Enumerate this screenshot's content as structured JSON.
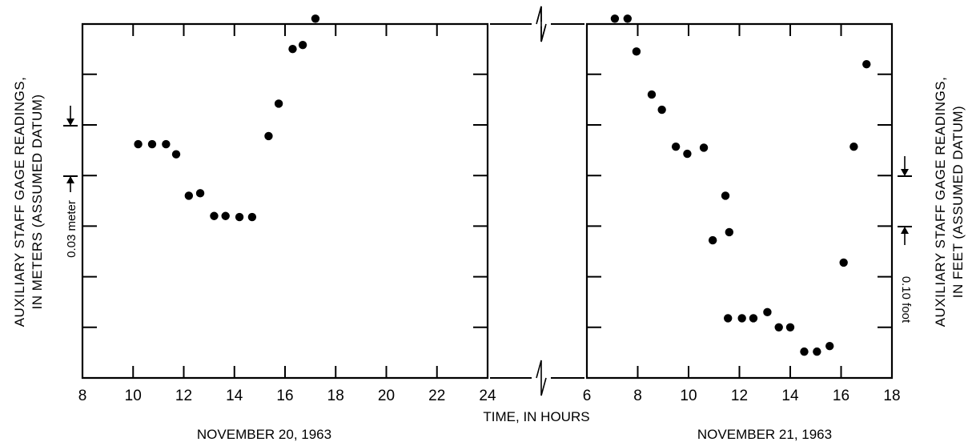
{
  "chart_data": [
    {
      "type": "scatter",
      "panel": "left",
      "date_label": "NOVEMBER 20, 1963",
      "xlim": [
        8,
        24
      ],
      "xticks": [
        8,
        10,
        12,
        14,
        16,
        18,
        20,
        22,
        24
      ],
      "xtick_labels": [
        "8",
        "10",
        "12",
        "14",
        "16",
        "18",
        "20",
        "22",
        "24"
      ],
      "ylabel_lines": [
        "AUXILIARY STAFF GAGE READINGS,",
        "IN METERS (ASSUMED DATUM)"
      ],
      "scale_bar_label": "0.03 meter",
      "points": [
        {
          "x": 10.2,
          "y": 5.62
        },
        {
          "x": 10.75,
          "y": 5.62
        },
        {
          "x": 11.3,
          "y": 5.62
        },
        {
          "x": 11.7,
          "y": 5.42
        },
        {
          "x": 12.2,
          "y": 4.6
        },
        {
          "x": 12.65,
          "y": 4.65
        },
        {
          "x": 13.2,
          "y": 4.2
        },
        {
          "x": 13.65,
          "y": 4.2
        },
        {
          "x": 14.2,
          "y": 4.18
        },
        {
          "x": 14.7,
          "y": 4.18
        },
        {
          "x": 15.35,
          "y": 5.78
        },
        {
          "x": 15.75,
          "y": 6.42
        },
        {
          "x": 16.3,
          "y": 7.5
        },
        {
          "x": 16.7,
          "y": 7.58
        },
        {
          "x": 17.2,
          "y": 8.1
        }
      ]
    },
    {
      "type": "scatter",
      "panel": "right",
      "date_label": "NOVEMBER 21, 1963",
      "xlim": [
        6,
        18
      ],
      "xticks": [
        6,
        8,
        10,
        12,
        14,
        16,
        18
      ],
      "xtick_labels": [
        "6",
        "8",
        "10",
        "12",
        "14",
        "16",
        "18"
      ],
      "ylabel_lines": [
        "AUXILIARY STAFF GAGE READINGS,",
        "IN FEET (ASSUMED DATUM)"
      ],
      "scale_bar_label": "0.10 foot",
      "points": [
        {
          "x": 7.1,
          "y": 8.1
        },
        {
          "x": 7.6,
          "y": 8.1
        },
        {
          "x": 7.95,
          "y": 7.45
        },
        {
          "x": 8.55,
          "y": 6.6
        },
        {
          "x": 8.95,
          "y": 6.3
        },
        {
          "x": 9.5,
          "y": 5.57
        },
        {
          "x": 9.95,
          "y": 5.43
        },
        {
          "x": 10.6,
          "y": 5.55
        },
        {
          "x": 10.95,
          "y": 3.72
        },
        {
          "x": 11.45,
          "y": 4.6
        },
        {
          "x": 11.6,
          "y": 3.88
        },
        {
          "x": 11.55,
          "y": 2.18
        },
        {
          "x": 12.1,
          "y": 2.18
        },
        {
          "x": 12.55,
          "y": 2.18
        },
        {
          "x": 13.1,
          "y": 2.3
        },
        {
          "x": 13.55,
          "y": 2.0
        },
        {
          "x": 14.0,
          "y": 2.0
        },
        {
          "x": 14.55,
          "y": 1.52
        },
        {
          "x": 15.05,
          "y": 1.52
        },
        {
          "x": 15.55,
          "y": 1.63
        },
        {
          "x": 16.1,
          "y": 3.28
        },
        {
          "x": 16.5,
          "y": 5.57
        },
        {
          "x": 17.0,
          "y": 7.2
        }
      ]
    }
  ],
  "x_axis_title": "TIME, IN HOURS"
}
